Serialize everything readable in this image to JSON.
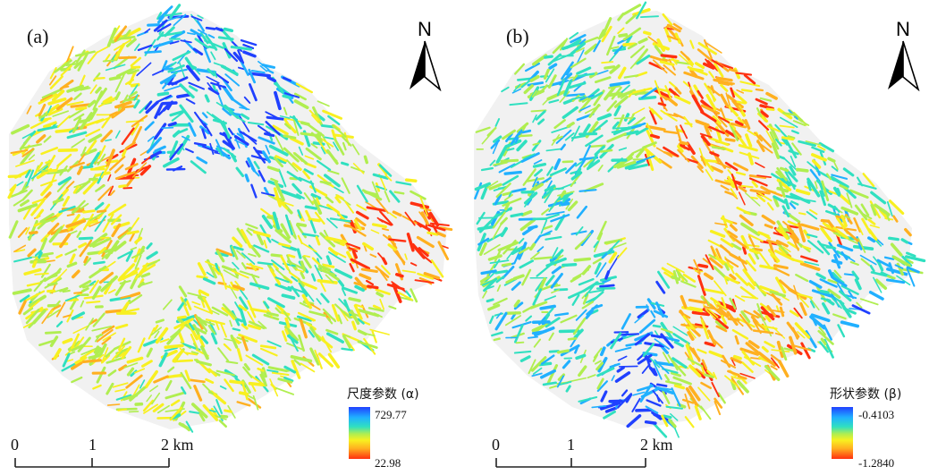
{
  "panels": [
    {
      "label": "(a)",
      "north_label": "N",
      "legend": {
        "title": "尺度参数 (α)",
        "max": "729.77",
        "min": "22.98"
      },
      "scale": {
        "ticks": [
          "0",
          "1",
          "2 km"
        ]
      }
    },
    {
      "label": "(b)",
      "north_label": "N",
      "legend": {
        "title": "形状参数 (β)",
        "max": "-0.4103",
        "min": "-1.2840"
      },
      "scale": {
        "ticks": [
          "0",
          "1",
          "2 km"
        ]
      }
    }
  ],
  "colors": {
    "ramp": [
      "#2040ff",
      "#20b0ff",
      "#30e0c0",
      "#b0ee50",
      "#f8f020",
      "#ffb020",
      "#ff3010"
    ],
    "background": "#ffffff"
  },
  "icons": [
    "north-arrow-icon"
  ]
}
